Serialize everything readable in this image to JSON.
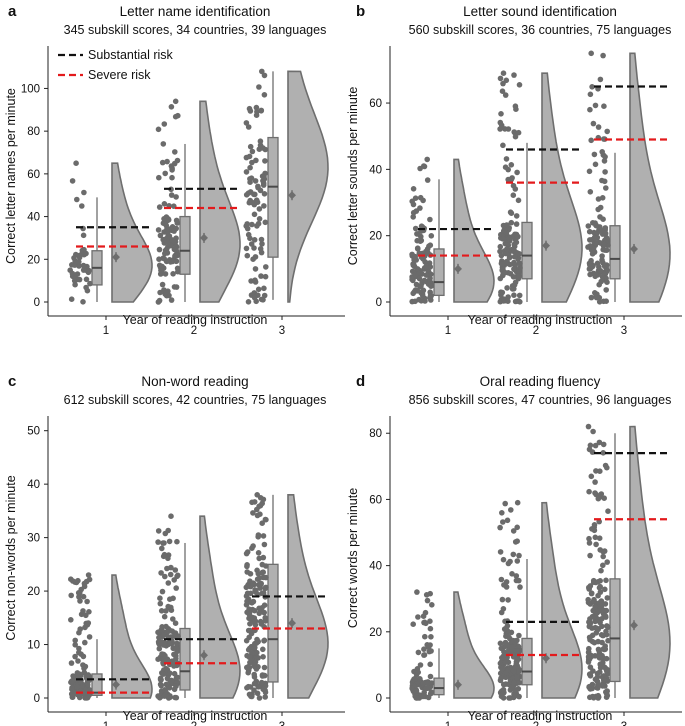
{
  "figure": {
    "x_values": [
      1,
      2,
      3
    ],
    "xlabel": "Year of reading instruction",
    "legend": {
      "placement": "top-left",
      "items": [
        {
          "label": "Substantial risk",
          "color": "#111111"
        },
        {
          "label": "Severe risk",
          "color": "#e31a1c"
        }
      ]
    },
    "colors": {
      "points": "#6b6b6b",
      "fill": "#b0b0b0",
      "outline": "#6e6e6e",
      "substantial": "#111111",
      "severe": "#e31a1c"
    }
  },
  "chart_data": [
    {
      "panel": "a",
      "type": "raincloud",
      "title": "Letter name identification",
      "subtitle": "345 subskill scores, 34 countries, 39 languages",
      "ylabel": "Correct letter names per minute",
      "xlabel": "Year of reading instruction",
      "ylim": [
        0,
        118
      ],
      "yticks": [
        0,
        20,
        40,
        60,
        80,
        100
      ],
      "categories": [
        "1",
        "2",
        "3"
      ],
      "groups": [
        {
          "x": 1,
          "min": 0,
          "q1": 8,
          "median": 16,
          "q3": 24,
          "max": 49,
          "mean": 21,
          "dist_max": 65,
          "peak": 15,
          "n_points": 45,
          "point_max": 65
        },
        {
          "x": 2,
          "min": 0,
          "q1": 13,
          "median": 24,
          "q3": 40,
          "max": 74,
          "mean": 30,
          "dist_max": 94,
          "peak": 24,
          "n_points": 110,
          "point_max": 94
        },
        {
          "x": 3,
          "min": 1,
          "q1": 21,
          "median": 54,
          "q3": 77,
          "max": 108,
          "mean": 50,
          "dist_max": 108,
          "peak": 60,
          "n_points": 95,
          "point_max": 108
        }
      ],
      "substantial_risk": [
        35,
        53,
        null
      ],
      "severe_risk": [
        26,
        44,
        null
      ]
    },
    {
      "panel": "b",
      "type": "raincloud",
      "title": "Letter sound identification",
      "subtitle": "560 subskill scores, 36 countries, 75 languages",
      "ylabel": "Correct letter sounds per minute",
      "xlabel": "Year of reading instruction",
      "ylim": [
        0,
        76
      ],
      "yticks": [
        0,
        20,
        40,
        60
      ],
      "categories": [
        "1",
        "2",
        "3"
      ],
      "groups": [
        {
          "x": 1,
          "min": 0,
          "q1": 2,
          "median": 6,
          "q3": 16,
          "max": 37,
          "mean": 10,
          "dist_max": 43,
          "peak": 5,
          "n_points": 110,
          "point_max": 43
        },
        {
          "x": 2,
          "min": 0,
          "q1": 7,
          "median": 14,
          "q3": 24,
          "max": 48,
          "mean": 17,
          "dist_max": 69,
          "peak": 14,
          "n_points": 150,
          "point_max": 69
        },
        {
          "x": 3,
          "min": 0,
          "q1": 7,
          "median": 13,
          "q3": 23,
          "max": 45,
          "mean": 16,
          "dist_max": 75,
          "peak": 12,
          "n_points": 130,
          "point_max": 75
        }
      ],
      "substantial_risk": [
        22,
        46,
        65
      ],
      "severe_risk": [
        14,
        36,
        49
      ]
    },
    {
      "panel": "c",
      "type": "raincloud",
      "title": "Non-word reading",
      "subtitle": "612 subskill scores, 42 countries, 75 languages",
      "ylabel": "Correct non-words per minute",
      "xlabel": "Year of reading instruction",
      "ylim": [
        0,
        52
      ],
      "yticks": [
        0,
        10,
        20,
        30,
        40,
        50
      ],
      "categories": [
        "1",
        "2",
        "3"
      ],
      "groups": [
        {
          "x": 1,
          "min": 0,
          "q1": 0.5,
          "median": 1,
          "q3": 4.5,
          "max": 11,
          "mean": 2.5,
          "dist_max": 23,
          "peak": 1,
          "n_points": 120,
          "point_max": 23
        },
        {
          "x": 2,
          "min": 0,
          "q1": 1.5,
          "median": 5,
          "q3": 13,
          "max": 29,
          "mean": 8,
          "dist_max": 34,
          "peak": 4,
          "n_points": 160,
          "point_max": 34
        },
        {
          "x": 3,
          "min": 0,
          "q1": 3,
          "median": 11,
          "q3": 25,
          "max": 38,
          "mean": 14,
          "dist_max": 38,
          "peak": 9,
          "n_points": 170,
          "point_max": 38
        }
      ],
      "substantial_risk": [
        3.5,
        11,
        19
      ],
      "severe_risk": [
        1,
        6.5,
        13
      ]
    },
    {
      "panel": "d",
      "type": "raincloud",
      "title": "Oral reading fluency",
      "subtitle": "856 subskill scores, 47 countries, 96 languages",
      "ylabel": "Correct words per minute",
      "xlabel": "Year of reading instruction",
      "ylim": [
        0,
        84
      ],
      "yticks": [
        0,
        20,
        40,
        60,
        80
      ],
      "categories": [
        "1",
        "2",
        "3"
      ],
      "groups": [
        {
          "x": 1,
          "min": 0,
          "q1": 1,
          "median": 3,
          "q3": 6,
          "max": 15,
          "mean": 4,
          "dist_max": 32,
          "peak": 2,
          "n_points": 90,
          "point_max": 32
        },
        {
          "x": 2,
          "min": 0,
          "q1": 4,
          "median": 8,
          "q3": 18,
          "max": 42,
          "mean": 12,
          "dist_max": 59,
          "peak": 7,
          "n_points": 170,
          "point_max": 59
        },
        {
          "x": 3,
          "min": 0,
          "q1": 5,
          "median": 18,
          "q3": 36,
          "max": 80,
          "mean": 22,
          "dist_max": 82,
          "peak": 14,
          "n_points": 190,
          "point_max": 82
        }
      ],
      "substantial_risk": [
        null,
        23,
        74
      ],
      "severe_risk": [
        null,
        13,
        54
      ]
    }
  ],
  "panel_letters": [
    "a",
    "b",
    "c",
    "d"
  ]
}
